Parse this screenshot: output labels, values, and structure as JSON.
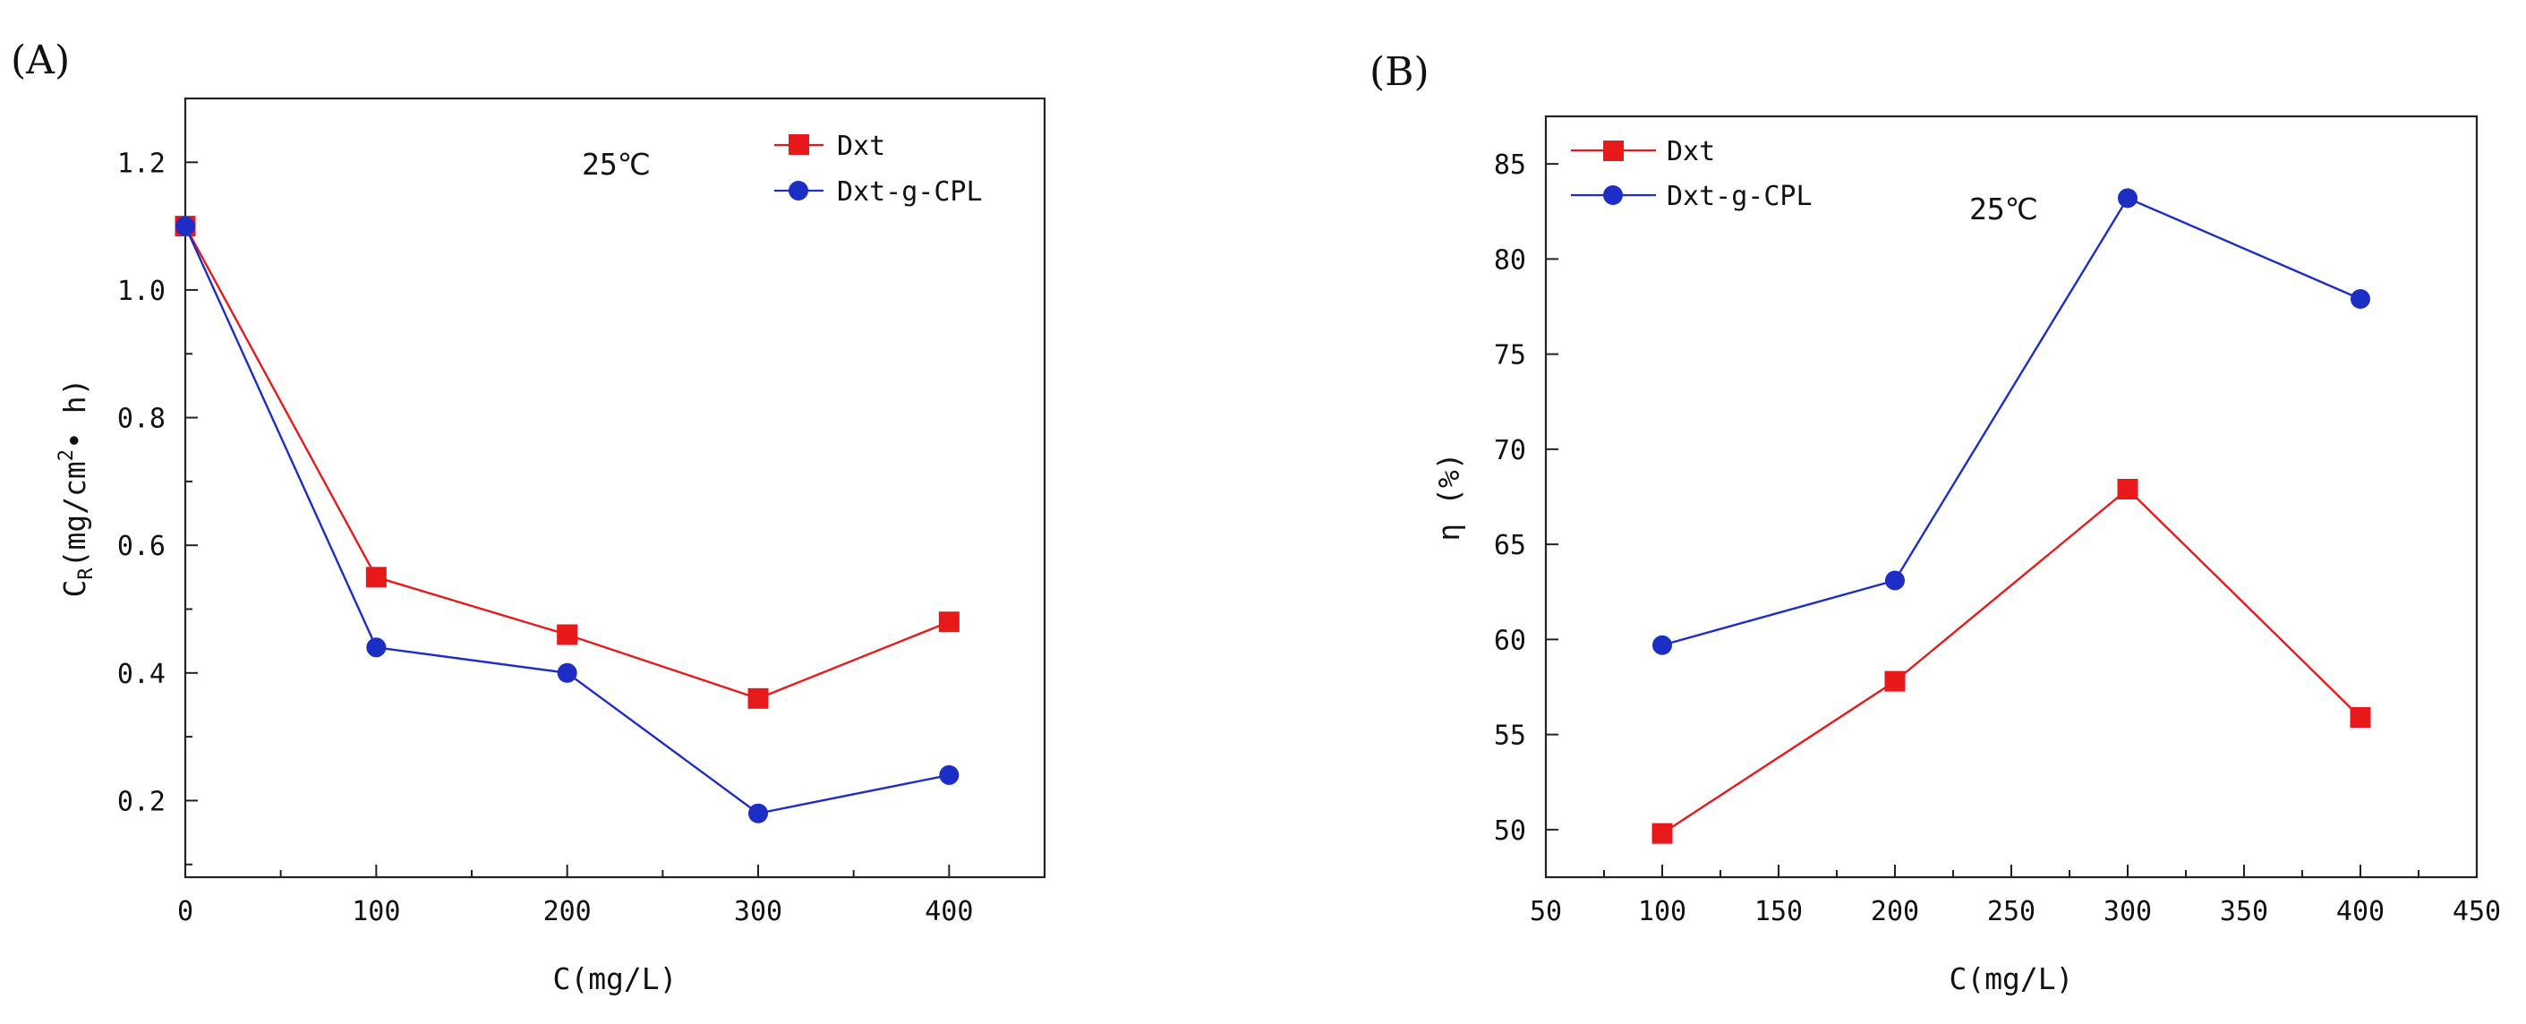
{
  "chart_data": [
    {
      "type": "line",
      "panel_label": "(A)",
      "annotation": "25℃",
      "xlabel": "C(mg/L)",
      "ylabel_main": "C",
      "ylabel_sub": "R",
      "ylabel_rest": "(mg/cm",
      "ylabel_sup": "2",
      "ylabel_end": "• h)",
      "xlim": [
        0,
        450
      ],
      "ylim": [
        0.08,
        1.3
      ],
      "xticks": [
        0,
        100,
        200,
        300,
        400
      ],
      "xtick_labels": [
        "0",
        "100",
        "200",
        "300",
        "400"
      ],
      "yticks": [
        0.2,
        0.4,
        0.6,
        0.8,
        1.0,
        1.2
      ],
      "ytick_labels": [
        "0.2",
        "0.4",
        "0.6",
        "0.8",
        "1.0",
        "1.2"
      ],
      "legend_position": "top-right",
      "series": [
        {
          "name": "Dxt",
          "color": "#e8191b",
          "marker": "square",
          "x": [
            0,
            100,
            200,
            300,
            400
          ],
          "values": [
            1.1,
            0.55,
            0.46,
            0.36,
            0.48
          ]
        },
        {
          "name": "Dxt-g-CPL",
          "color": "#1c2ec4",
          "marker": "circle",
          "x": [
            0,
            100,
            200,
            300,
            400
          ],
          "values": [
            1.1,
            0.44,
            0.4,
            0.18,
            0.24
          ]
        }
      ]
    },
    {
      "type": "line",
      "panel_label": "(B)",
      "annotation": "25℃",
      "xlabel": "C(mg/L)",
      "ylabel_main": "η (%)",
      "xlim": [
        50,
        450
      ],
      "ylim": [
        47.5,
        87.5
      ],
      "xticks": [
        50,
        100,
        150,
        200,
        250,
        300,
        350,
        400,
        450
      ],
      "xtick_labels": [
        "50",
        "100",
        "150",
        "200",
        "250",
        "300",
        "350",
        "400",
        "450"
      ],
      "yticks": [
        50,
        55,
        60,
        65,
        70,
        75,
        80,
        85
      ],
      "ytick_labels": [
        "50",
        "55",
        "60",
        "65",
        "70",
        "75",
        "80",
        "85"
      ],
      "legend_position": "top-left",
      "series": [
        {
          "name": "Dxt",
          "color": "#e8191b",
          "marker": "square",
          "x": [
            100,
            200,
            300,
            400
          ],
          "values": [
            49.8,
            57.8,
            67.9,
            55.9
          ]
        },
        {
          "name": "Dxt-g-CPL",
          "color": "#1c2ec4",
          "marker": "circle",
          "x": [
            100,
            200,
            300,
            400
          ],
          "values": [
            59.7,
            63.1,
            83.2,
            77.9
          ]
        }
      ]
    }
  ]
}
